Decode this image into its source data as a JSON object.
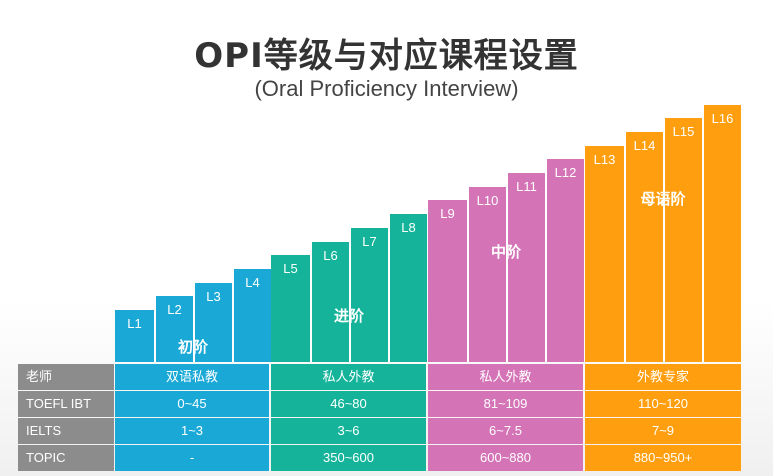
{
  "title": "OPI等级与对应课程设置",
  "subtitle": "(Oral Proficiency Interview)",
  "colors": {
    "beginner": "#1aa9d6",
    "intermediate": "#15b49a",
    "advanced": "#d473b6",
    "native": "#ff9f0f",
    "row_header": "#8c8c8c"
  },
  "stages": [
    {
      "name": "初阶",
      "levels": [
        "L1",
        "L2",
        "L3",
        "L4"
      ]
    },
    {
      "name": "进阶",
      "levels": [
        "L5",
        "L6",
        "L7",
        "L8"
      ]
    },
    {
      "name": "中阶",
      "levels": [
        "L9",
        "L10",
        "L11",
        "L12"
      ]
    },
    {
      "name": "母语阶",
      "levels": [
        "L13",
        "L14",
        "L15",
        "L16"
      ]
    }
  ],
  "table": {
    "rows": [
      {
        "label": "老师",
        "values": [
          "双语私教",
          "私人外教",
          "私人外教",
          "外教专家"
        ]
      },
      {
        "label": "TOEFL IBT",
        "values": [
          "0~45",
          "46~80",
          "81~109",
          "110~120"
        ]
      },
      {
        "label": "IELTS",
        "values": [
          "1~3",
          "3~6",
          "6~7.5",
          "7~9"
        ]
      },
      {
        "label": "TOPIC",
        "values": [
          "-",
          "350~600",
          "600~880",
          "880~950+"
        ]
      }
    ]
  }
}
